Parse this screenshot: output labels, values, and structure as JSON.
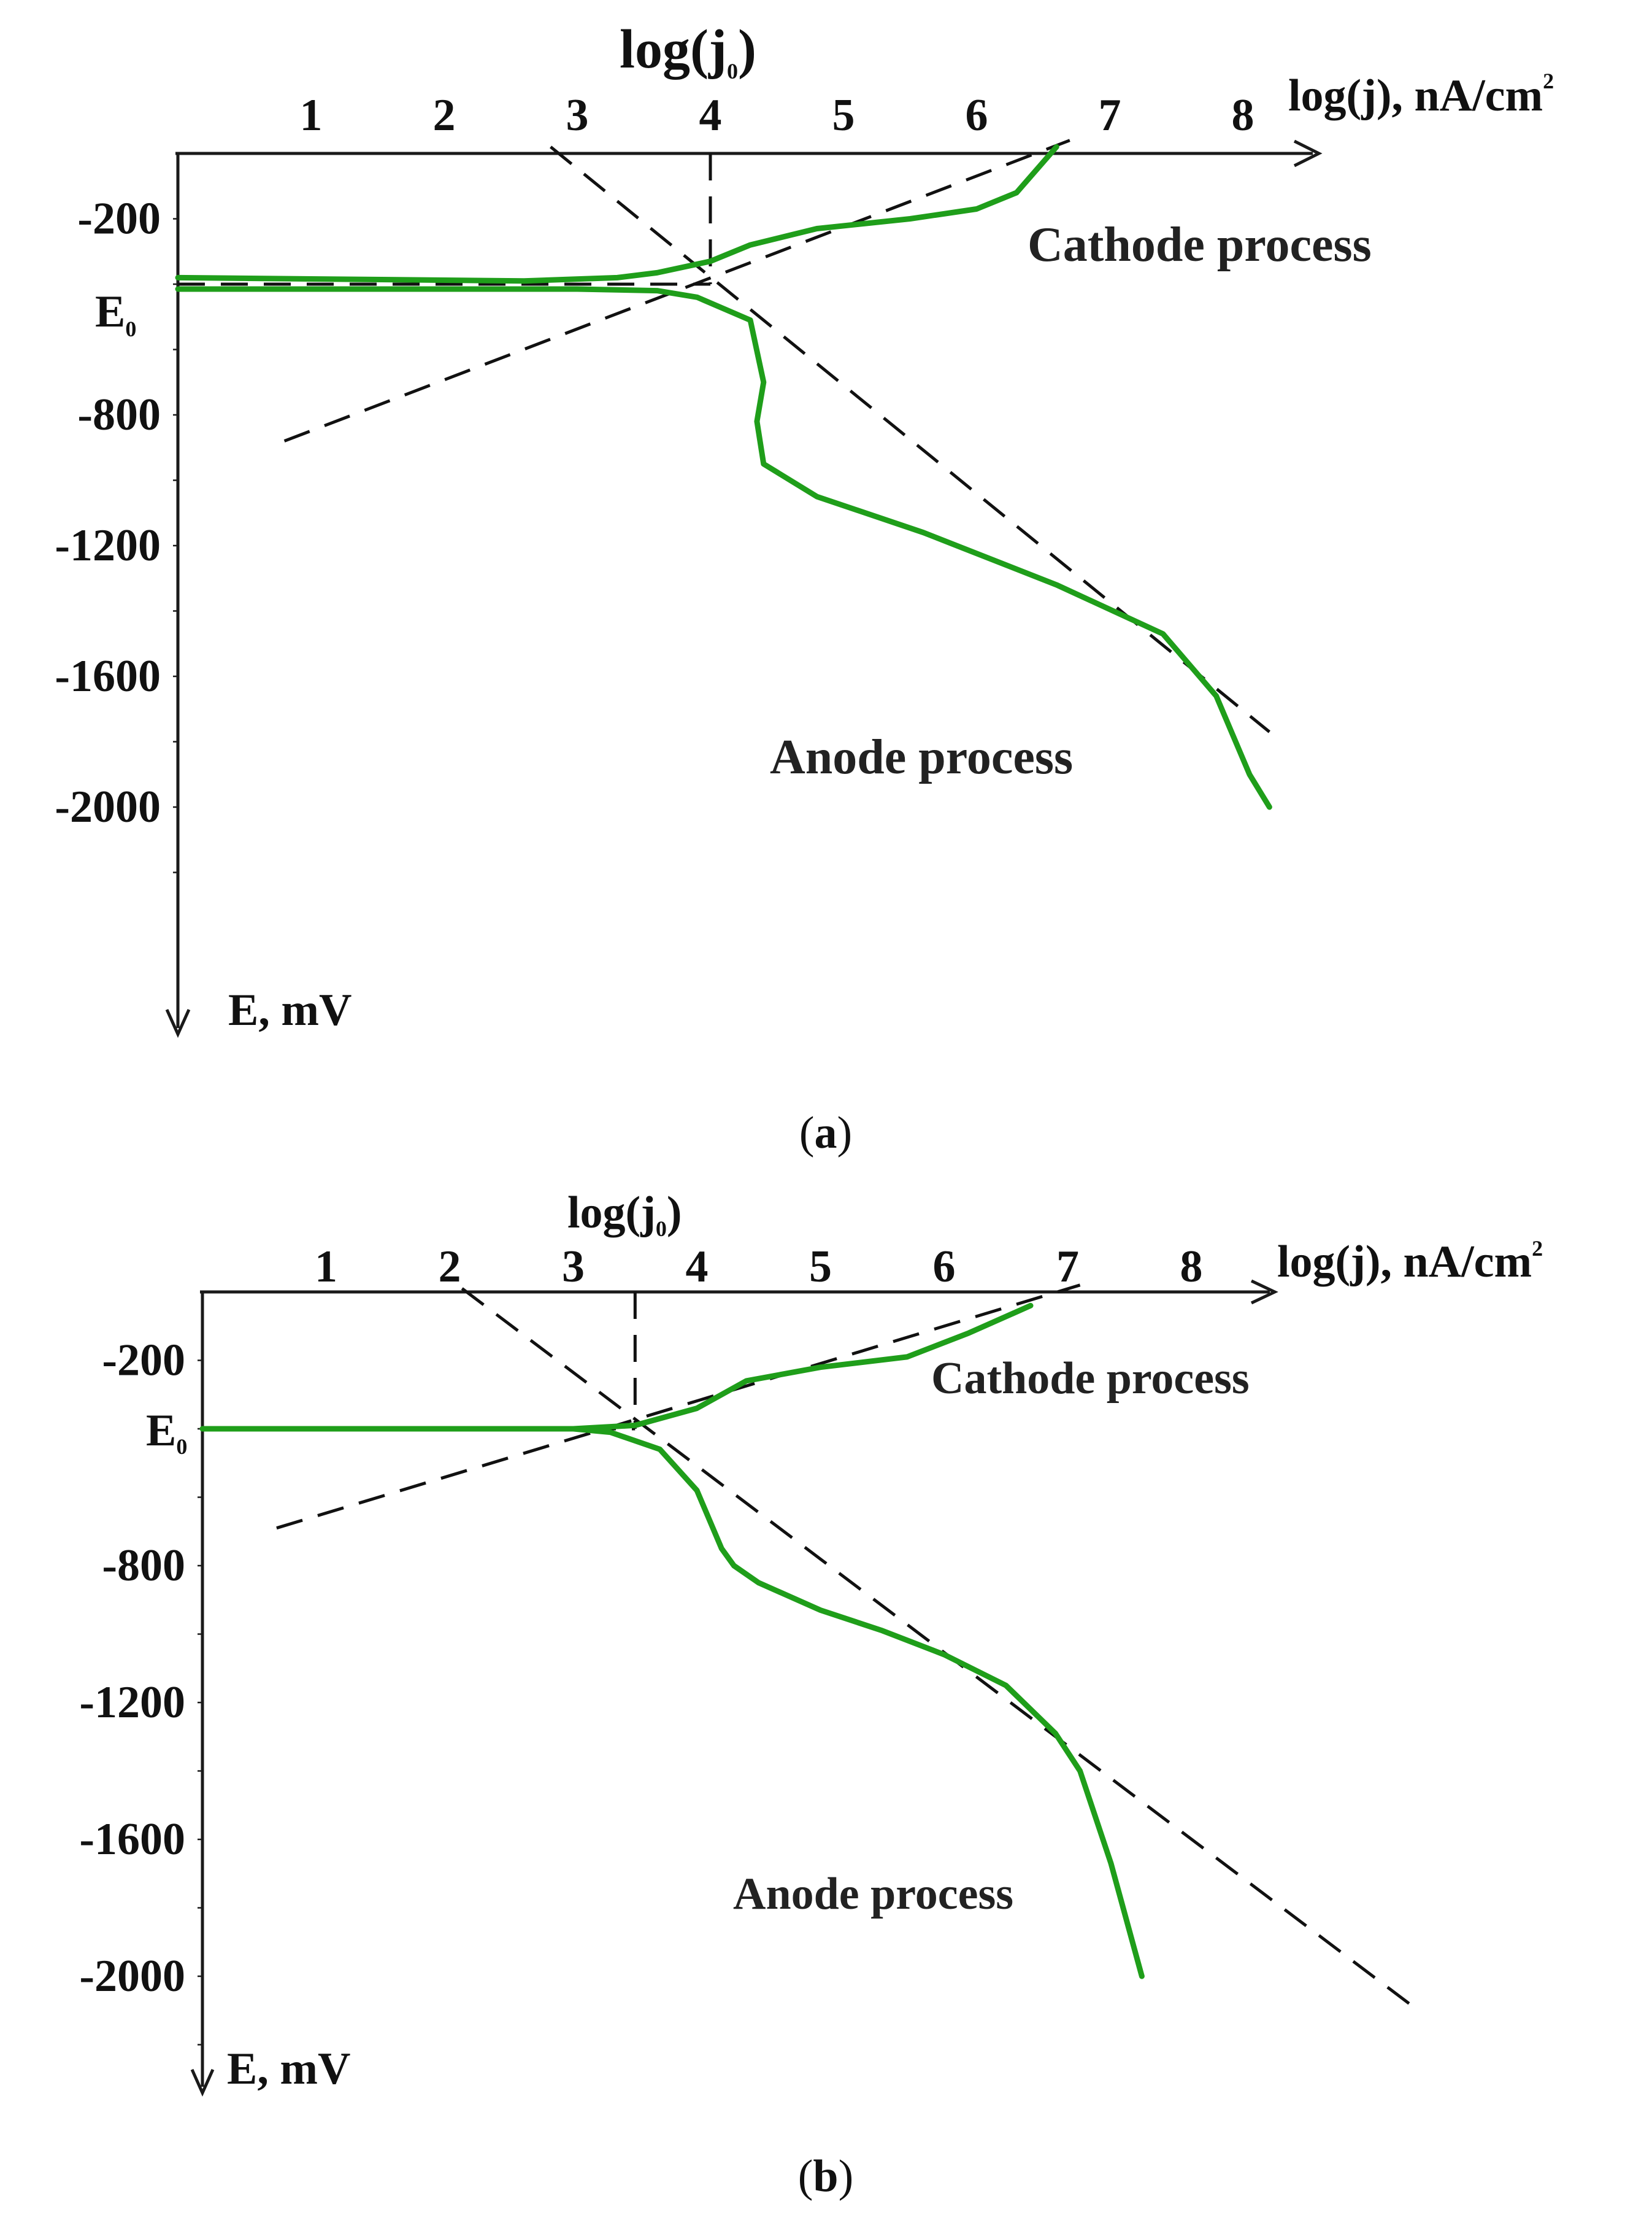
{
  "chart_data": [
    {
      "type": "line",
      "panel_label": "(a)",
      "panel_letter": "a",
      "x_axis_label": "log(j), nA/cm",
      "x_axis_label_sup": "2",
      "y_axis_label": "E, mV",
      "j0_label": "log(j",
      "j0_sub": "0",
      "j0_close": ")",
      "e0_label": "E",
      "e0_sub": "0",
      "x_ticks": [
        "1",
        "2",
        "3",
        "4",
        "5",
        "6",
        "7",
        "8"
      ],
      "y_ticks": [
        "-200",
        "-800",
        "-1200",
        "-1600",
        "-2000"
      ],
      "y_tick_values": [
        -200,
        -800,
        -1200,
        -1600,
        -2000
      ],
      "xlim": [
        0,
        9
      ],
      "ylim": [
        0,
        -2400
      ],
      "e0_value": -400,
      "log_j0_value": 4.0,
      "annotations": [
        "Cathode process",
        "Anode process"
      ],
      "series": [
        {
          "values": [
            [
              0,
              -380
            ],
            [
              2.6,
              -390
            ],
            [
              3.3,
              -380
            ],
            [
              3.6,
              -365
            ],
            [
              4.0,
              -330
            ],
            [
              4.3,
              -280
            ],
            [
              4.8,
              -230
            ],
            [
              5.5,
              -200
            ],
            [
              6.0,
              -170
            ],
            [
              6.3,
              -120
            ],
            [
              6.6,
              20
            ]
          ]
        },
        {
          "values": [
            [
              0,
              -415
            ],
            [
              3.0,
              -415
            ],
            [
              3.6,
              -420
            ],
            [
              3.9,
              -440
            ],
            [
              4.3,
              -510
            ],
            [
              4.4,
              -700
            ],
            [
              4.35,
              -820
            ],
            [
              4.4,
              -950
            ],
            [
              4.8,
              -1050
            ],
            [
              5.6,
              -1160
            ],
            [
              6.6,
              -1320
            ],
            [
              7.4,
              -1470
            ],
            [
              7.8,
              -1660
            ],
            [
              8.05,
              -1900
            ],
            [
              8.2,
              -2000
            ]
          ]
        },
        {
          "values": [
            [
              0.8,
              -880
            ],
            [
              6.7,
              40
            ]
          ]
        },
        {
          "values": [
            [
              2.8,
              20
            ],
            [
              8.2,
              -1770
            ]
          ]
        }
      ]
    },
    {
      "type": "line",
      "panel_label": "(b)",
      "panel_letter": "b",
      "x_axis_label": "log(j), nA/cm",
      "x_axis_label_sup": "2",
      "y_axis_label": "E, mV",
      "j0_label": "log(j",
      "j0_sub": "0",
      "j0_close": ")",
      "e0_label": "E",
      "e0_sub": "0",
      "x_ticks": [
        "1",
        "2",
        "3",
        "4",
        "5",
        "6",
        "7",
        "8"
      ],
      "y_ticks": [
        "-200",
        "-800",
        "-1200",
        "-1600",
        "-2000"
      ],
      "y_tick_values": [
        -200,
        -800,
        -1200,
        -1600,
        -2000
      ],
      "xlim": [
        0,
        9
      ],
      "ylim": [
        0,
        -2400
      ],
      "e0_value": -400,
      "log_j0_value": 3.5,
      "annotations": [
        "Cathode process",
        "Anode process"
      ],
      "series": [
        {
          "values": [
            [
              0,
              -400
            ],
            [
              3.0,
              -400
            ],
            [
              3.5,
              -390
            ],
            [
              4.0,
              -340
            ],
            [
              4.4,
              -260
            ],
            [
              5.0,
              -220
            ],
            [
              5.7,
              -190
            ],
            [
              6.2,
              -120
            ],
            [
              6.7,
              -40
            ]
          ]
        },
        {
          "values": [
            [
              0,
              -400
            ],
            [
              3.0,
              -400
            ],
            [
              3.3,
              -410
            ],
            [
              3.7,
              -460
            ],
            [
              4.0,
              -580
            ],
            [
              4.2,
              -750
            ],
            [
              4.3,
              -800
            ],
            [
              4.5,
              -850
            ],
            [
              5.0,
              -930
            ],
            [
              5.5,
              -990
            ],
            [
              6.0,
              -1060
            ],
            [
              6.5,
              -1150
            ],
            [
              6.9,
              -1290
            ],
            [
              7.1,
              -1400
            ],
            [
              7.35,
              -1670
            ],
            [
              7.6,
              -2000
            ]
          ]
        },
        {
          "values": [
            [
              0.6,
              -690
            ],
            [
              7.1,
              20
            ]
          ]
        },
        {
          "values": [
            [
              2.1,
              10
            ],
            [
              9.8,
              -2090
            ]
          ]
        }
      ]
    }
  ]
}
